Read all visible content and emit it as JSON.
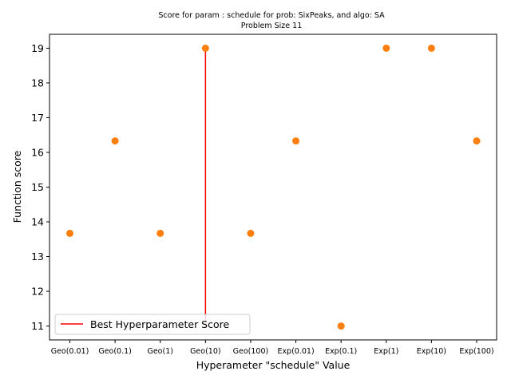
{
  "chart_data": {
    "type": "scatter",
    "title": "Score for param : schedule for prob: SixPeaks, and algo: SA",
    "subtitle": "Problem Size 11",
    "xlabel": "Hyperameter \"schedule\" Value",
    "ylabel": "Function score",
    "categories": [
      "Geo(0.01)",
      "Geo(0.1)",
      "Geo(1)",
      "Geo(10)",
      "Geo(100)",
      "Exp(0.01)",
      "Exp(0.1)",
      "Exp(1)",
      "Exp(10)",
      "Exp(100)"
    ],
    "values": [
      13.67,
      16.33,
      13.67,
      19,
      13.67,
      16.33,
      11,
      19,
      19,
      16.33
    ],
    "ylim": [
      10.6,
      19.4
    ],
    "yticks": [
      "11",
      "12",
      "13",
      "14",
      "15",
      "16",
      "17",
      "18",
      "19"
    ],
    "grid": false,
    "legend": {
      "position": "lower-left",
      "entries": [
        "Best Hyperparameter Score"
      ]
    },
    "best_line": {
      "category": "Geo(10)",
      "y_from": 11,
      "y_to": 19,
      "color": "#e8000b"
    },
    "colors": {
      "points": "#ff7f0e",
      "best_line": "#ff0000"
    }
  }
}
